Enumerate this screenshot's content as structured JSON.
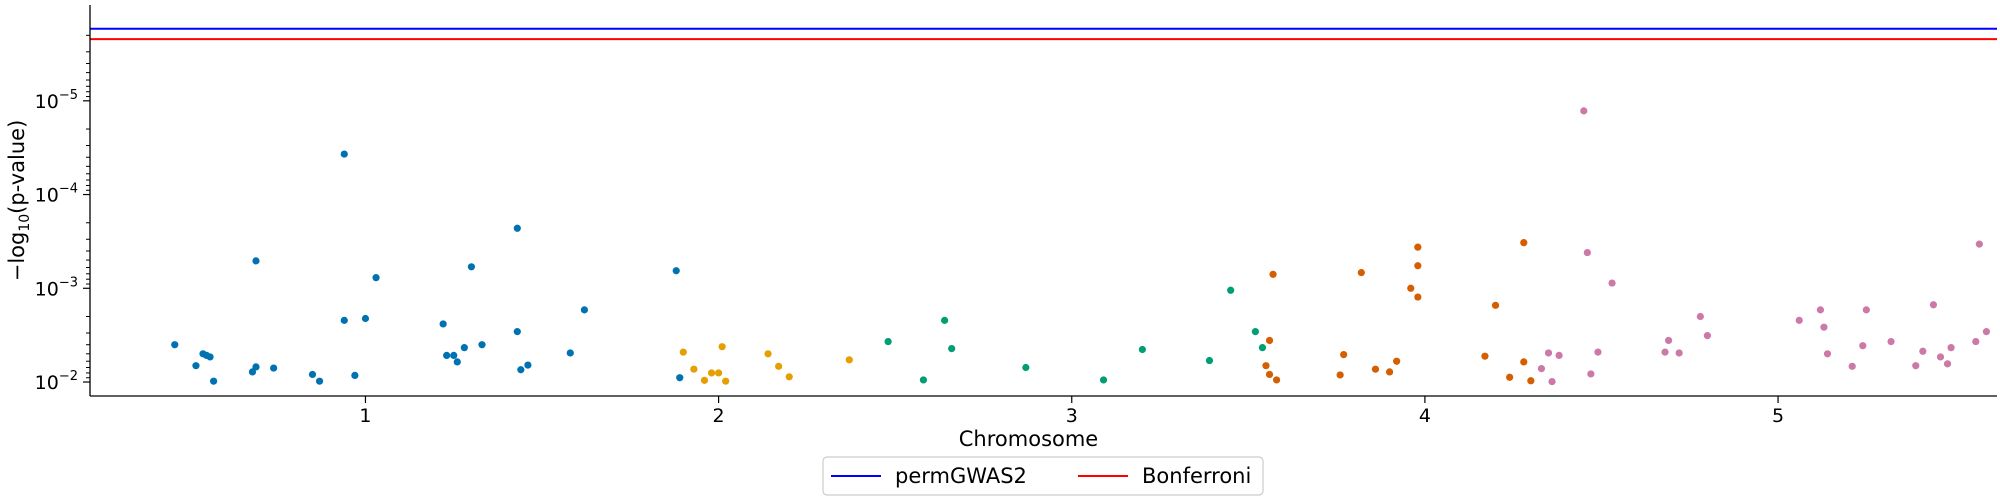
{
  "chart_data": {
    "type": "scatter",
    "title": "",
    "xlabel": "Chromosome",
    "ylabel": {
      "prefix": "−log",
      "sub": "10",
      "suffix": "(p-value)"
    },
    "y_scale": "log",
    "y_ticks": [
      {
        "value": 0.01,
        "base": "10",
        "exp": "−2"
      },
      {
        "value": 0.001,
        "base": "10",
        "exp": "−3"
      },
      {
        "value": 0.0001,
        "base": "10",
        "exp": "−4"
      },
      {
        "value": 1e-05,
        "base": "10",
        "exp": "−5"
      }
    ],
    "x_ticks": [
      {
        "value": 1,
        "label": "1"
      },
      {
        "value": 2,
        "label": "2"
      },
      {
        "value": 3,
        "label": "3"
      },
      {
        "value": 4,
        "label": "4"
      },
      {
        "value": 5,
        "label": "5"
      }
    ],
    "xlim": [
      0.22,
      5.62
    ],
    "ylim": [
      0.0141,
      9.5e-07
    ],
    "grid": false,
    "legend_position": "bottom-center",
    "thresholds": [
      {
        "name": "permGWAS2",
        "p": 1.7e-06,
        "color": "#0000ff"
      },
      {
        "name": "Bonferroni",
        "p": 2.2e-06,
        "color": "#ff0000"
      }
    ],
    "series": [
      {
        "chromosome": 1,
        "color": "#0072b2",
        "points": [
          [
            0.46,
            0.004
          ],
          [
            0.52,
            0.0067
          ],
          [
            0.54,
            0.005
          ],
          [
            0.55,
            0.0052
          ],
          [
            0.56,
            0.0054
          ],
          [
            0.57,
            0.0098
          ],
          [
            0.68,
            0.0078
          ],
          [
            0.69,
            0.0069
          ],
          [
            0.69,
            0.00051
          ],
          [
            0.74,
            0.0071
          ],
          [
            0.85,
            0.0083
          ],
          [
            0.87,
            0.0098
          ],
          [
            0.94,
            0.0022
          ],
          [
            0.94,
            3.7e-05
          ],
          [
            0.97,
            0.0085
          ],
          [
            1.0,
            0.0021
          ],
          [
            1.03,
            0.00077
          ],
          [
            1.22,
            0.0024
          ],
          [
            1.23,
            0.0052
          ],
          [
            1.25,
            0.0052
          ],
          [
            1.26,
            0.0061
          ],
          [
            1.28,
            0.0043
          ],
          [
            1.3,
            0.00059
          ],
          [
            1.33,
            0.004
          ],
          [
            1.43,
            0.0029
          ],
          [
            1.43,
            0.000229
          ],
          [
            1.44,
            0.0074
          ],
          [
            1.46,
            0.0066
          ],
          [
            1.58,
            0.0049
          ],
          [
            1.62,
            0.0017
          ],
          [
            1.88,
            0.00065
          ],
          [
            1.89,
            0.009
          ]
        ]
      },
      {
        "chromosome": 2,
        "color": "#e69f00",
        "points": [
          [
            1.9,
            0.0048
          ],
          [
            1.93,
            0.0073
          ],
          [
            1.96,
            0.0096
          ],
          [
            1.98,
            0.008
          ],
          [
            2.0,
            0.008
          ],
          [
            2.01,
            0.0042
          ],
          [
            2.02,
            0.0098
          ],
          [
            2.14,
            0.005
          ],
          [
            2.17,
            0.0068
          ],
          [
            2.2,
            0.0088
          ],
          [
            2.37,
            0.0058
          ]
        ]
      },
      {
        "chromosome": 3,
        "color": "#009e73",
        "points": [
          [
            2.48,
            0.0037
          ],
          [
            2.58,
            0.0095
          ],
          [
            2.64,
            0.0022
          ],
          [
            2.66,
            0.0044
          ],
          [
            2.87,
            0.007
          ],
          [
            3.09,
            0.0095
          ],
          [
            3.2,
            0.0045
          ],
          [
            3.39,
            0.0059
          ],
          [
            3.45,
            0.00105
          ],
          [
            3.52,
            0.0029
          ],
          [
            3.54,
            0.0043
          ]
        ]
      },
      {
        "chromosome": 4,
        "color": "#d55e00",
        "points": [
          [
            3.55,
            0.0067
          ],
          [
            3.56,
            0.0036
          ],
          [
            3.56,
            0.0083
          ],
          [
            3.57,
            0.00071
          ],
          [
            3.58,
            0.0095
          ],
          [
            3.76,
            0.0084
          ],
          [
            3.77,
            0.0051
          ],
          [
            3.82,
            0.00068
          ],
          [
            3.86,
            0.0073
          ],
          [
            3.9,
            0.0078
          ],
          [
            3.92,
            0.006
          ],
          [
            3.96,
            0.001
          ],
          [
            3.98,
            0.000364
          ],
          [
            3.98,
            0.000575
          ],
          [
            3.98,
            0.00124
          ],
          [
            4.17,
            0.0053
          ],
          [
            4.2,
            0.00152
          ],
          [
            4.24,
            0.0089
          ],
          [
            4.28,
            0.0061
          ],
          [
            4.28,
            0.000326
          ],
          [
            4.3,
            0.0097
          ]
        ]
      },
      {
        "chromosome": 5,
        "color": "#cc79a7",
        "points": [
          [
            4.33,
            0.0072
          ],
          [
            4.35,
            0.0049
          ],
          [
            4.36,
            0.0099
          ],
          [
            4.38,
            0.0052
          ],
          [
            4.45,
            1.28e-05
          ],
          [
            4.46,
            0.000416
          ],
          [
            4.47,
            0.0082
          ],
          [
            4.49,
            0.0048
          ],
          [
            4.53,
            0.00088
          ],
          [
            4.68,
            0.0048
          ],
          [
            4.69,
            0.0036
          ],
          [
            4.72,
            0.0049
          ],
          [
            4.78,
            0.002
          ],
          [
            4.8,
            0.0032
          ],
          [
            5.06,
            0.0022
          ],
          [
            5.12,
            0.0017
          ],
          [
            5.13,
            0.0026
          ],
          [
            5.14,
            0.005
          ],
          [
            5.21,
            0.0068
          ],
          [
            5.24,
            0.0041
          ],
          [
            5.25,
            0.0017
          ],
          [
            5.32,
            0.0037
          ],
          [
            5.39,
            0.0067
          ],
          [
            5.41,
            0.0047
          ],
          [
            5.44,
            0.0015
          ],
          [
            5.46,
            0.0054
          ],
          [
            5.48,
            0.0064
          ],
          [
            5.49,
            0.0043
          ],
          [
            5.56,
            0.0037
          ],
          [
            5.57,
            0.000338
          ],
          [
            5.59,
            0.0029
          ]
        ]
      }
    ]
  }
}
